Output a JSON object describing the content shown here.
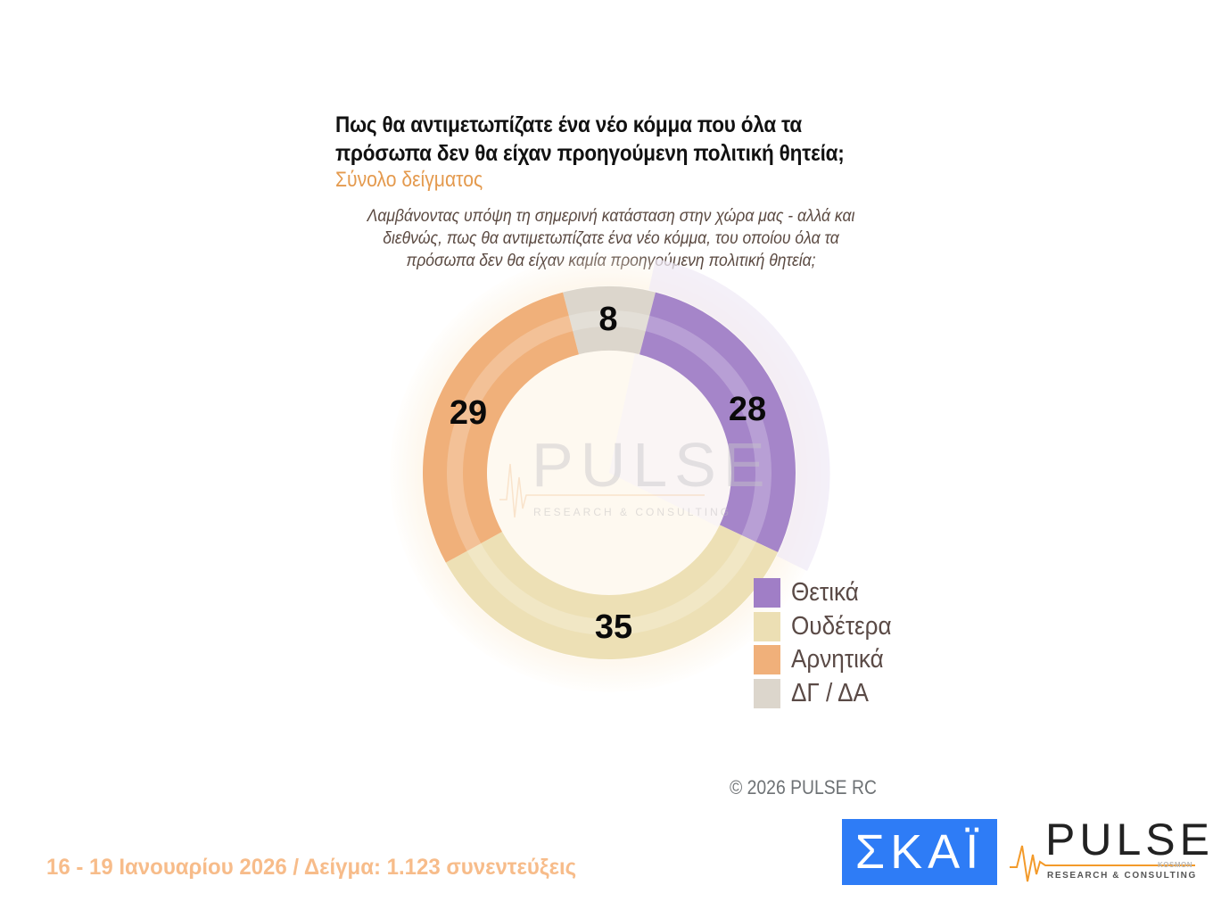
{
  "header": {
    "title_line1": "Πως θα αντιμετωπίζατε ένα νέο κόμμα που όλα τα",
    "title_line2": "πρόσωπα δεν θα είχαν προηγούμενη πολιτική θητεία;",
    "subtitle": "Σύνολο δείγματος",
    "question": "Λαμβάνοντας υπόψη τη σημερινή κατάσταση στην χώρα μας - αλλά και διεθνώς, πως θα αντιμετωπίζατε ένα νέο κόμμα, του οποίου όλα τα πρόσωπα δεν θα είχαν καμία προηγούμενη πολιτική θητεία;"
  },
  "chart_data": {
    "type": "pie",
    "subtype": "donut",
    "title": "Πως θα αντιμετωπίζατε ένα νέο κόμμα που όλα τα πρόσωπα δεν θα είχαν προηγούμενη πολιτική θητεία;",
    "subtitle": "Σύνολο δείγματος",
    "categories": [
      "ΔΓ / ΔΑ",
      "Θετικά",
      "Ουδέτερα",
      "Αρνητικά"
    ],
    "values": [
      8,
      28,
      35,
      29
    ],
    "colors": [
      "#dcd6cc",
      "#a585c9",
      "#ede0b5",
      "#f0b07a"
    ],
    "unit": "%",
    "legend_position": "right-bottom",
    "legend_order": [
      "Θετικά",
      "Ουδέτερα",
      "Αρνητικά",
      "ΔΓ / ΔΑ"
    ]
  },
  "labels": {
    "dk": "8",
    "positive": "28",
    "neutral": "35",
    "negative": "29"
  },
  "legend": {
    "items": [
      {
        "label": "Θετικά",
        "color": "#a07ec6"
      },
      {
        "label": "Ουδέτερα",
        "color": "#ecdfb4"
      },
      {
        "label": "Αρνητικά",
        "color": "#f0b07a"
      },
      {
        "label": "ΔΓ / ΔΑ",
        "color": "#dcd6cc"
      }
    ]
  },
  "watermark": {
    "word": "PULSE",
    "sub": "RESEARCH & CONSULTING"
  },
  "footer": {
    "copyright": "©  2026  PULSE RC",
    "fieldwork": "16 - 19 Ιανουαρίου 2026  /  Δείγμα:  1.123 συνεντεύξεις"
  },
  "logos": {
    "skai": "ΣΚΑΪ",
    "pulse": "PULSE",
    "pulse_kosmon": "KOSMON",
    "pulse_sub": "RESEARCH & CONSULTING"
  }
}
